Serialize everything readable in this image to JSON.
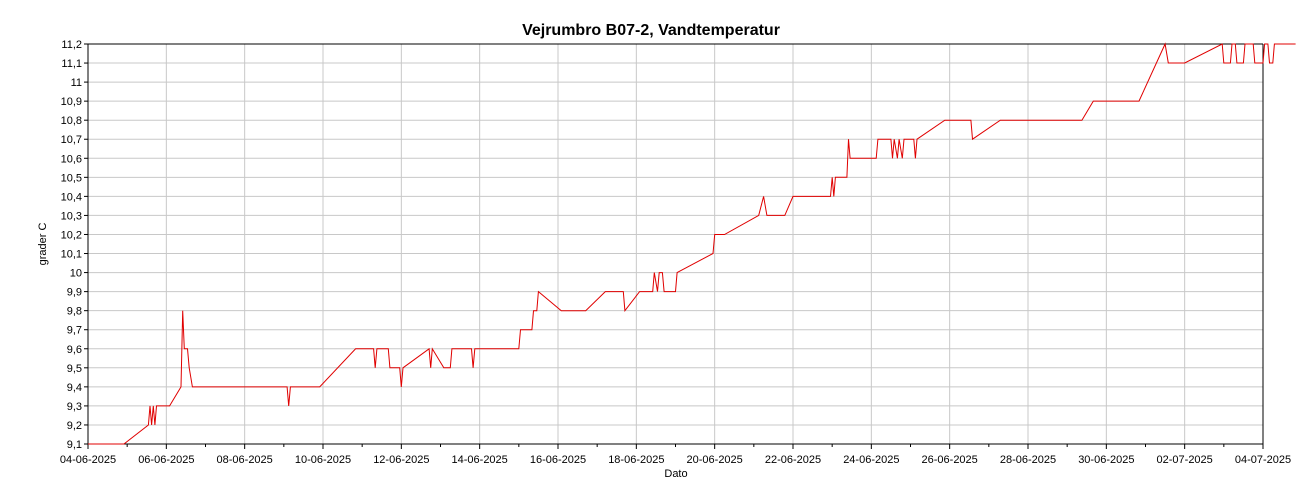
{
  "chart_data": {
    "type": "line",
    "title": "Vejrumbro B07-2, Vandtemperatur",
    "xlabel": "Dato",
    "ylabel": "grader C",
    "xlim": [
      "2025-06-04",
      "2025-07-04"
    ],
    "ylim": [
      9.1,
      11.2
    ],
    "grid": true,
    "x_ticks": [
      "04-06-2025",
      "06-06-2025",
      "08-06-2025",
      "10-06-2025",
      "12-06-2025",
      "14-06-2025",
      "16-06-2025",
      "18-06-2025",
      "20-06-2025",
      "22-06-2025",
      "24-06-2025",
      "26-06-2025",
      "28-06-2025",
      "30-06-2025",
      "02-07-2025",
      "04-07-2025"
    ],
    "y_ticks": [
      "9,1",
      "9,2",
      "9,3",
      "9,4",
      "9,5",
      "9,6",
      "9,7",
      "9,8",
      "9,9",
      "10",
      "10,1",
      "10,2",
      "10,3",
      "10,4",
      "10,5",
      "10,6",
      "10,7",
      "10,8",
      "10,9",
      "11",
      "11,1",
      "11,2"
    ],
    "series": [
      {
        "color": "#e00000",
        "points": [
          [
            "2025-06-04 00:00",
            9.1
          ],
          [
            "2025-06-04 22:00",
            9.1
          ],
          [
            "2025-06-05 13:00",
            9.2
          ],
          [
            "2025-06-05 14:00",
            9.3
          ],
          [
            "2025-06-05 15:00",
            9.2
          ],
          [
            "2025-06-05 16:00",
            9.3
          ],
          [
            "2025-06-05 17:00",
            9.2
          ],
          [
            "2025-06-05 18:00",
            9.3
          ],
          [
            "2025-06-06 02:00",
            9.3
          ],
          [
            "2025-06-06 09:00",
            9.4
          ],
          [
            "2025-06-06 10:00",
            9.8
          ],
          [
            "2025-06-06 11:00",
            9.6
          ],
          [
            "2025-06-06 13:00",
            9.6
          ],
          [
            "2025-06-06 14:00",
            9.5
          ],
          [
            "2025-06-06 16:00",
            9.4
          ],
          [
            "2025-06-09 02:00",
            9.4
          ],
          [
            "2025-06-09 03:00",
            9.3
          ],
          [
            "2025-06-09 04:00",
            9.4
          ],
          [
            "2025-06-09 22:00",
            9.4
          ],
          [
            "2025-06-10 20:00",
            9.6
          ],
          [
            "2025-06-11 07:00",
            9.6
          ],
          [
            "2025-06-11 08:00",
            9.5
          ],
          [
            "2025-06-11 09:00",
            9.6
          ],
          [
            "2025-06-11 16:00",
            9.6
          ],
          [
            "2025-06-11 17:00",
            9.5
          ],
          [
            "2025-06-11 23:00",
            9.5
          ],
          [
            "2025-06-12 00:00",
            9.4
          ],
          [
            "2025-06-12 01:00",
            9.5
          ],
          [
            "2025-06-12 17:00",
            9.6
          ],
          [
            "2025-06-12 18:00",
            9.5
          ],
          [
            "2025-06-12 19:00",
            9.6
          ],
          [
            "2025-06-13 02:00",
            9.5
          ],
          [
            "2025-06-13 06:00",
            9.5
          ],
          [
            "2025-06-13 07:00",
            9.6
          ],
          [
            "2025-06-13 19:00",
            9.6
          ],
          [
            "2025-06-13 20:00",
            9.5
          ],
          [
            "2025-06-13 21:00",
            9.6
          ],
          [
            "2025-06-15 00:00",
            9.6
          ],
          [
            "2025-06-15 01:00",
            9.7
          ],
          [
            "2025-06-15 08:00",
            9.7
          ],
          [
            "2025-06-15 09:00",
            9.8
          ],
          [
            "2025-06-15 11:00",
            9.8
          ],
          [
            "2025-06-15 12:00",
            9.9
          ],
          [
            "2025-06-16 02:00",
            9.8
          ],
          [
            "2025-06-16 17:00",
            9.8
          ],
          [
            "2025-06-17 05:00",
            9.9
          ],
          [
            "2025-06-17 16:00",
            9.9
          ],
          [
            "2025-06-17 17:00",
            9.8
          ],
          [
            "2025-06-18 02:00",
            9.9
          ],
          [
            "2025-06-18 10:00",
            9.9
          ],
          [
            "2025-06-18 11:00",
            10.0
          ],
          [
            "2025-06-18 13:00",
            9.9
          ],
          [
            "2025-06-18 14:00",
            10.0
          ],
          [
            "2025-06-18 16:00",
            10.0
          ],
          [
            "2025-06-18 17:00",
            9.9
          ],
          [
            "2025-06-19 00:00",
            9.9
          ],
          [
            "2025-06-19 01:00",
            10.0
          ],
          [
            "2025-06-19 23:00",
            10.1
          ],
          [
            "2025-06-20 00:00",
            10.2
          ],
          [
            "2025-06-20 06:00",
            10.2
          ],
          [
            "2025-06-21 03:00",
            10.3
          ],
          [
            "2025-06-21 06:00",
            10.4
          ],
          [
            "2025-06-21 08:00",
            10.3
          ],
          [
            "2025-06-21 19:00",
            10.3
          ],
          [
            "2025-06-22 00:00",
            10.4
          ],
          [
            "2025-06-22 23:00",
            10.4
          ],
          [
            "2025-06-23 00:00",
            10.5
          ],
          [
            "2025-06-23 01:00",
            10.4
          ],
          [
            "2025-06-23 02:00",
            10.5
          ],
          [
            "2025-06-23 09:00",
            10.5
          ],
          [
            "2025-06-23 10:00",
            10.7
          ],
          [
            "2025-06-23 11:00",
            10.6
          ],
          [
            "2025-06-24 03:00",
            10.6
          ],
          [
            "2025-06-24 04:00",
            10.7
          ],
          [
            "2025-06-24 12:00",
            10.7
          ],
          [
            "2025-06-24 13:00",
            10.6
          ],
          [
            "2025-06-24 14:00",
            10.7
          ],
          [
            "2025-06-24 16:00",
            10.6
          ],
          [
            "2025-06-24 17:00",
            10.7
          ],
          [
            "2025-06-24 19:00",
            10.6
          ],
          [
            "2025-06-24 20:00",
            10.7
          ],
          [
            "2025-06-25 02:00",
            10.7
          ],
          [
            "2025-06-25 03:00",
            10.6
          ],
          [
            "2025-06-25 04:00",
            10.7
          ],
          [
            "2025-06-25 21:00",
            10.8
          ],
          [
            "2025-06-26 13:00",
            10.8
          ],
          [
            "2025-06-26 14:00",
            10.7
          ],
          [
            "2025-06-27 07:00",
            10.8
          ],
          [
            "2025-06-29 09:00",
            10.8
          ],
          [
            "2025-06-29 16:00",
            10.9
          ],
          [
            "2025-06-30 20:00",
            10.9
          ],
          [
            "2025-07-01 12:00",
            11.2
          ],
          [
            "2025-07-01 14:00",
            11.1
          ],
          [
            "2025-07-02 00:00",
            11.1
          ],
          [
            "2025-07-02 23:00",
            11.2
          ],
          [
            "2025-07-03 00:00",
            11.1
          ],
          [
            "2025-07-03 04:00",
            11.1
          ],
          [
            "2025-07-03 05:00",
            11.2
          ],
          [
            "2025-07-03 07:00",
            11.2
          ],
          [
            "2025-07-03 08:00",
            11.1
          ],
          [
            "2025-07-03 12:00",
            11.1
          ],
          [
            "2025-07-03 13:00",
            11.2
          ],
          [
            "2025-07-03 18:00",
            11.2
          ],
          [
            "2025-07-03 19:00",
            11.1
          ],
          [
            "2025-07-04 00:00",
            11.1
          ],
          [
            "2025-07-04 01:00",
            11.2
          ],
          [
            "2025-07-04 03:00",
            11.2
          ],
          [
            "2025-07-04 04:00",
            11.1
          ],
          [
            "2025-07-04 06:00",
            11.1
          ],
          [
            "2025-07-04 07:00",
            11.2
          ],
          [
            "2025-07-04 20:00",
            11.2
          ]
        ]
      }
    ]
  }
}
